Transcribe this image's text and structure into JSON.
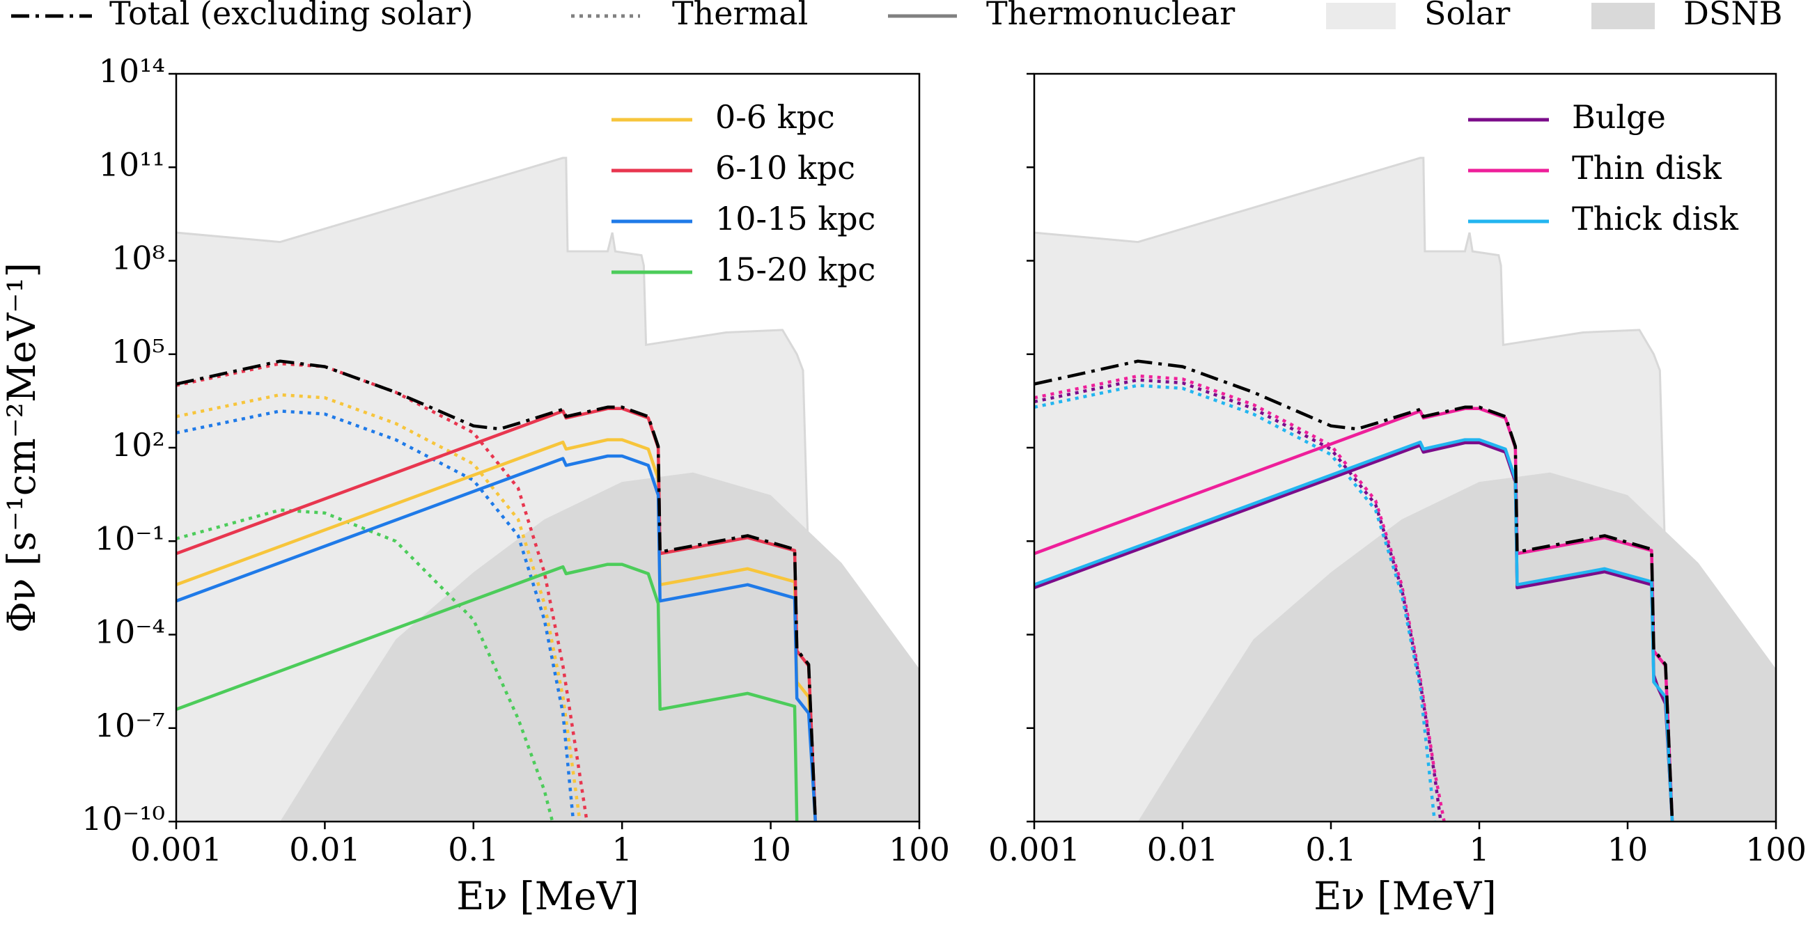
{
  "legend": [
    {
      "name": "Total (excluding solar)",
      "style": "dashdot",
      "color": "#000000"
    },
    {
      "name": "Thermal",
      "style": "dotted",
      "color": "#808080"
    },
    {
      "name": "Thermonuclear",
      "style": "solid",
      "color": "#808080"
    },
    {
      "name": "Solar",
      "style": "fill",
      "color": "#ebebeb"
    },
    {
      "name": "DSNB",
      "style": "fill",
      "color": "#d9d9d9"
    }
  ],
  "chart_data": [
    {
      "type": "line",
      "xscale": "log",
      "yscale": "log",
      "xlabel": "Eν [MeV]",
      "ylabel": "Φν [s⁻¹cm⁻²MeV⁻¹]",
      "xlim": [
        0.001,
        100
      ],
      "ylim": [
        1e-10,
        100000000000000.0
      ],
      "xticks": [
        0.001,
        0.01,
        0.1,
        1,
        10,
        100
      ],
      "yticks": [
        {
          "value": 1e-10,
          "label": "10⁻¹⁰"
        },
        {
          "value": 1e-07,
          "label": "10⁻⁷"
        },
        {
          "value": 0.0001,
          "label": "10⁻⁴"
        },
        {
          "value": 0.1,
          "label": "10⁻¹"
        },
        {
          "value": 100,
          "label": "10²"
        },
        {
          "value": 100000.0,
          "label": "10⁵"
        },
        {
          "value": 100000000.0,
          "label": "10⁸"
        },
        {
          "value": 100000000000.0,
          "label": "10¹¹"
        },
        {
          "value": 100000000000000.0,
          "label": "10¹⁴"
        }
      ],
      "legend_loc": "upper right",
      "solar": {
        "x": [
          0.001,
          0.005,
          0.4,
          0.42,
          0.43,
          0.8,
          0.86,
          0.9,
          1.35,
          1.4,
          1.45,
          5,
          12,
          15,
          16.5,
          17.8,
          18.8
        ],
        "values": [
          800000000.0,
          400000000.0,
          200000000000.0,
          200000000000.0,
          200000000.0,
          200000000.0,
          800000000.0,
          200000000.0,
          150000000.0,
          70000000.0,
          200000.0,
          500000.0,
          600000.0,
          100000.0,
          30000.0,
          0.1,
          1e-10
        ]
      },
      "dsnb": {
        "x": [
          0.005,
          0.01,
          0.03,
          0.1,
          0.3,
          1,
          3,
          10,
          30,
          100
        ],
        "values": [
          1e-10,
          2e-08,
          7e-05,
          0.01,
          0.5,
          8,
          16,
          3,
          0.02,
          8e-06
        ]
      },
      "total": {
        "x": [
          0.001,
          0.005,
          0.01,
          0.03,
          0.1,
          0.15,
          0.2,
          0.4,
          0.42,
          0.8,
          1,
          1.5,
          1.75,
          1.8,
          7,
          14.5,
          15,
          18,
          20
        ],
        "values": [
          11000.0,
          60000.0,
          40000.0,
          6000.0,
          500,
          400,
          600,
          1700,
          1000,
          2000,
          2000,
          1000,
          110,
          0.045,
          0.15,
          0.055,
          3.3e-05,
          1.1e-05,
          1e-10
        ]
      },
      "series": [
        {
          "name": "0-6 kpc",
          "color": "#f7c53b",
          "thermonuclear": {
            "x": [
              0.001,
              0.4,
              0.42,
              0.8,
              1,
              1.5,
              1.75,
              1.8,
              7,
              14.5,
              15,
              18,
              20
            ],
            "values": [
              0.004,
              150,
              90,
              180,
              180,
              90,
              10,
              0.004,
              0.013,
              0.005,
              3e-06,
              1e-06,
              1e-10
            ]
          },
          "thermal": {
            "x": [
              0.001,
              0.005,
              0.01,
              0.03,
              0.1,
              0.2,
              0.3,
              0.4,
              0.52
            ],
            "values": [
              1000,
              5000,
              4000,
              600,
              30,
              0.5,
              0.001,
              1e-06,
              1e-10
            ]
          }
        },
        {
          "name": "6-10 kpc",
          "color": "#e8364f",
          "thermonuclear": {
            "x": [
              0.001,
              0.4,
              0.42,
              0.8,
              1,
              1.5,
              1.75,
              1.8,
              7,
              14.5,
              15,
              18,
              20
            ],
            "values": [
              0.04,
              1500,
              900,
              1800,
              1800,
              900,
              100,
              0.04,
              0.13,
              0.05,
              3e-05,
              1e-05,
              1e-10
            ]
          },
          "thermal": {
            "x": [
              0.001,
              0.005,
              0.01,
              0.03,
              0.1,
              0.2,
              0.3,
              0.4,
              0.5,
              0.58
            ],
            "values": [
              10000.0,
              50000.0,
              40000.0,
              6000.0,
              300,
              5,
              0.01,
              1e-05,
              1e-08,
              1e-10
            ]
          }
        },
        {
          "name": "10-15 kpc",
          "color": "#1f7ae8",
          "thermonuclear": {
            "x": [
              0.001,
              0.4,
              0.42,
              0.8,
              1,
              1.5,
              1.75,
              1.8,
              7,
              14.5,
              15,
              18,
              20
            ],
            "values": [
              0.0012,
              45,
              27,
              54,
              54,
              27,
              3,
              0.0012,
              0.004,
              0.0015,
              9e-07,
              3e-07,
              1e-10
            ]
          },
          "thermal": {
            "x": [
              0.001,
              0.005,
              0.01,
              0.03,
              0.1,
              0.2,
              0.3,
              0.4,
              0.47
            ],
            "values": [
              300,
              1500,
              1200,
              180,
              9,
              0.15,
              0.0003,
              3e-07,
              1e-10
            ]
          }
        },
        {
          "name": "15-20 kpc",
          "color": "#4ccc5a",
          "thermonuclear": {
            "x": [
              0.001,
              0.4,
              0.42,
              0.8,
              1,
              1.5,
              1.75,
              1.8,
              7,
              14.5,
              15
            ],
            "values": [
              4e-07,
              0.015,
              0.009,
              0.018,
              0.018,
              0.009,
              0.001,
              4e-07,
              1.3e-06,
              5e-07,
              1e-10
            ]
          },
          "thermal": {
            "x": [
              0.001,
              0.005,
              0.01,
              0.03,
              0.1,
              0.2,
              0.3,
              0.34
            ],
            "values": [
              0.12,
              1,
              0.8,
              0.1,
              0.0003,
              2e-07,
              1e-09,
              1e-10
            ]
          }
        }
      ]
    },
    {
      "type": "line",
      "xscale": "log",
      "yscale": "log",
      "xlabel": "Eν [MeV]",
      "xlim": [
        0.001,
        100
      ],
      "ylim": [
        1e-10,
        100000000000000.0
      ],
      "xticks": [
        0.001,
        0.01,
        0.1,
        1,
        10,
        100
      ],
      "yticks": [
        1e-10,
        1e-07,
        0.0001,
        0.1,
        100,
        100000.0,
        100000000.0,
        100000000000.0,
        100000000000000.0
      ],
      "legend_loc": "upper right",
      "solar": {
        "x": [
          0.001,
          0.005,
          0.4,
          0.42,
          0.43,
          0.8,
          0.86,
          0.9,
          1.35,
          1.4,
          1.45,
          5,
          12,
          15,
          16.5,
          17.8,
          18.8
        ],
        "values": [
          800000000.0,
          400000000.0,
          200000000000.0,
          200000000000.0,
          200000000.0,
          200000000.0,
          800000000.0,
          200000000.0,
          150000000.0,
          70000000.0,
          200000.0,
          500000.0,
          600000.0,
          100000.0,
          30000.0,
          0.1,
          1e-10
        ]
      },
      "dsnb": {
        "x": [
          0.005,
          0.01,
          0.03,
          0.1,
          0.3,
          1,
          3,
          10,
          30,
          100
        ],
        "values": [
          1e-10,
          2e-08,
          7e-05,
          0.01,
          0.5,
          8,
          16,
          3,
          0.02,
          8e-06
        ]
      },
      "total": {
        "x": [
          0.001,
          0.005,
          0.01,
          0.03,
          0.1,
          0.15,
          0.2,
          0.4,
          0.42,
          0.8,
          1,
          1.5,
          1.75,
          1.8,
          7,
          14.5,
          15,
          18,
          20
        ],
        "values": [
          11000.0,
          60000.0,
          40000.0,
          6000.0,
          500,
          400,
          600,
          1700,
          1000,
          2000,
          2000,
          1000,
          110,
          0.045,
          0.15,
          0.055,
          3.3e-05,
          1.1e-05,
          1e-10
        ]
      },
      "series": [
        {
          "name": "Bulge",
          "color": "#7b0c8a",
          "thermonuclear": {
            "x": [
              0.001,
              0.4,
              0.42,
              0.8,
              1,
              1.5,
              1.75,
              1.8,
              7,
              14.5,
              15,
              16,
              18,
              20
            ],
            "values": [
              0.0032,
              120,
              72,
              144,
              144,
              72,
              8,
              0.0032,
              0.0104,
              0.004,
              5e-06,
              2e-06,
              6e-07,
              1e-10
            ]
          },
          "thermal": {
            "x": [
              0.001,
              0.005,
              0.01,
              0.03,
              0.1,
              0.2,
              0.3,
              0.4,
              0.5,
              0.55
            ],
            "values": [
              3000,
              15000.0,
              12000.0,
              1800,
              90,
              1.5,
              0.003,
              3e-06,
              3e-09,
              1e-10
            ]
          }
        },
        {
          "name": "Thin disk",
          "color": "#ee1f9a",
          "thermonuclear": {
            "x": [
              0.001,
              0.4,
              0.42,
              0.8,
              1,
              1.5,
              1.75,
              1.8,
              7,
              14.5,
              15,
              18,
              20
            ],
            "values": [
              0.04,
              1500,
              900,
              1800,
              1800,
              900,
              100,
              0.04,
              0.13,
              0.05,
              3e-05,
              1e-05,
              1e-10
            ]
          },
          "thermal": {
            "x": [
              0.001,
              0.005,
              0.01,
              0.03,
              0.1,
              0.2,
              0.3,
              0.4,
              0.5,
              0.58
            ],
            "values": [
              4000,
              20000.0,
              16000.0,
              2400,
              120,
              2,
              0.004,
              4e-06,
              4e-09,
              1e-10
            ]
          }
        },
        {
          "name": "Thick disk",
          "color": "#22b5f0",
          "thermonuclear": {
            "x": [
              0.001,
              0.4,
              0.42,
              0.8,
              1,
              1.5,
              1.75,
              1.8,
              7,
              14.5,
              15,
              18,
              20
            ],
            "values": [
              0.004,
              150,
              90,
              180,
              180,
              90,
              10,
              0.004,
              0.013,
              0.005,
              3e-06,
              1e-06,
              1e-10
            ]
          },
          "thermal": {
            "x": [
              0.001,
              0.005,
              0.01,
              0.03,
              0.1,
              0.2,
              0.3,
              0.4,
              0.5
            ],
            "values": [
              2000,
              10000.0,
              8000,
              1200,
              60,
              1,
              0.002,
              2e-06,
              1e-10
            ]
          }
        }
      ]
    }
  ]
}
